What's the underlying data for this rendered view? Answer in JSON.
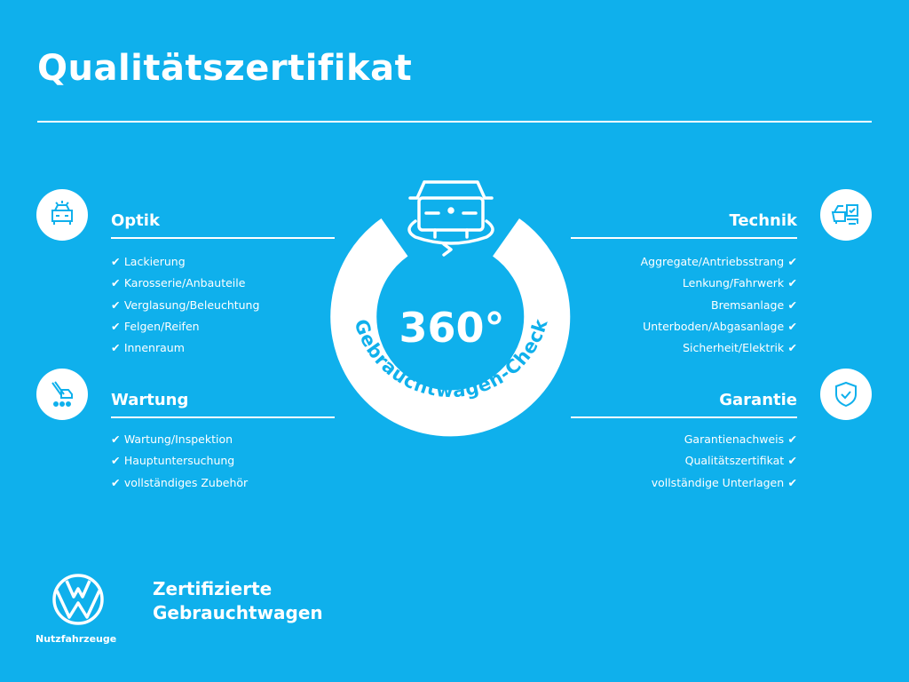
{
  "title": "Qualitätszertifikat",
  "colors": {
    "background": "#0fb0ec",
    "foreground": "#ffffff"
  },
  "center": {
    "value": "360°",
    "caption": "Gebrauchtwagen-Check",
    "icon": "car-rotate-icon"
  },
  "sections": {
    "optik": {
      "heading": "Optik",
      "icon": "car-front-icon",
      "items": [
        "Lackierung",
        "Karosserie/Anbauteile",
        "Verglasung/Beleuchtung",
        "Felgen/Reifen",
        "Innenraum"
      ]
    },
    "wartung": {
      "heading": "Wartung",
      "icon": "service-tools-icon",
      "items": [
        "Wartung/Inspektion",
        "Hauptuntersuchung",
        "vollständiges Zubehör"
      ]
    },
    "technik": {
      "heading": "Technik",
      "icon": "car-checklist-icon",
      "items": [
        "Aggregate/Antriebsstrang",
        "Lenkung/Fahrwerk",
        "Bremsanlage",
        "Unterboden/Abgasanlage",
        "Sicherheit/Elektrik"
      ]
    },
    "garantie": {
      "heading": "Garantie",
      "icon": "shield-check-icon",
      "items": [
        "Garantienachweis",
        "Qualitätszertifikat",
        "vollständige Unterlagen"
      ]
    }
  },
  "footer": {
    "brand_line1": "Zertifizierte",
    "brand_line2": "Gebrauchtwagen",
    "logo_caption": "Nutzfahrzeuge",
    "logo": "vw-logo"
  }
}
